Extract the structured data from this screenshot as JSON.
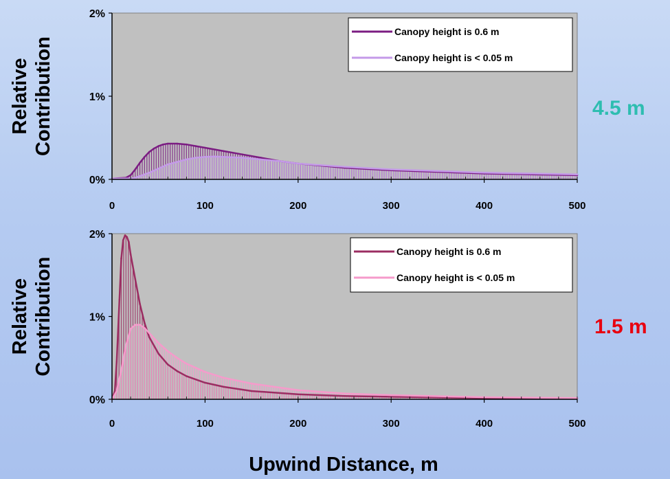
{
  "chart_data": [
    {
      "type": "line",
      "panel_label": "4.5 m",
      "ylabel": [
        "Relative",
        "Contribution"
      ],
      "xlabel": "",
      "xlim": [
        0,
        500
      ],
      "ylim": [
        0,
        2
      ],
      "x_ticks": [
        0,
        100,
        200,
        300,
        400,
        500
      ],
      "y_ticks": [
        0,
        1,
        2
      ],
      "y_tick_labels": [
        "0%",
        "1%",
        "2%"
      ],
      "legend_position": "top-right",
      "series": [
        {
          "name": "Canopy height is 0.6 m",
          "color": "#7b1c82",
          "x": [
            0,
            15,
            20,
            25,
            30,
            35,
            40,
            45,
            50,
            55,
            60,
            70,
            80,
            90,
            100,
            120,
            140,
            160,
            180,
            200,
            250,
            300,
            350,
            400,
            450,
            500
          ],
          "y": [
            0.01,
            0.02,
            0.05,
            0.12,
            0.2,
            0.27,
            0.33,
            0.37,
            0.4,
            0.42,
            0.43,
            0.43,
            0.42,
            0.4,
            0.38,
            0.34,
            0.3,
            0.26,
            0.22,
            0.19,
            0.14,
            0.11,
            0.09,
            0.07,
            0.06,
            0.05
          ]
        },
        {
          "name": "Canopy height is < 0.05 m",
          "color": "#c49ae8",
          "x": [
            0,
            20,
            25,
            30,
            40,
            50,
            60,
            70,
            80,
            90,
            100,
            110,
            120,
            140,
            160,
            180,
            200,
            250,
            300,
            350,
            400,
            450,
            500
          ],
          "y": [
            0.01,
            0.01,
            0.02,
            0.04,
            0.08,
            0.13,
            0.18,
            0.21,
            0.24,
            0.26,
            0.27,
            0.275,
            0.27,
            0.26,
            0.24,
            0.22,
            0.19,
            0.15,
            0.12,
            0.1,
            0.08,
            0.07,
            0.06
          ]
        }
      ]
    },
    {
      "type": "line",
      "panel_label": "1.5 m",
      "ylabel": [
        "Relative",
        "Contribution"
      ],
      "xlabel": "Upwind Distance, m",
      "xlim": [
        0,
        500
      ],
      "ylim": [
        0,
        2
      ],
      "x_ticks": [
        0,
        100,
        200,
        300,
        400,
        500
      ],
      "y_ticks": [
        0,
        1,
        2
      ],
      "y_tick_labels": [
        "0%",
        "1%",
        "2%"
      ],
      "legend_position": "top-right",
      "series": [
        {
          "name": "Canopy height is 0.6 m",
          "color": "#9b2d62",
          "x": [
            0,
            3,
            5,
            8,
            10,
            12,
            14,
            16,
            18,
            20,
            25,
            30,
            35,
            40,
            50,
            60,
            70,
            80,
            100,
            120,
            150,
            200,
            250,
            300,
            400,
            500
          ],
          "y": [
            0.0,
            0.1,
            0.45,
            1.2,
            1.7,
            1.92,
            1.98,
            1.96,
            1.9,
            1.75,
            1.45,
            1.15,
            0.92,
            0.75,
            0.55,
            0.42,
            0.34,
            0.28,
            0.2,
            0.15,
            0.1,
            0.06,
            0.04,
            0.03,
            0.015,
            0.01
          ]
        },
        {
          "name": "Canopy height is < 0.05 m",
          "color": "#f59bcb",
          "x": [
            0,
            5,
            10,
            15,
            20,
            25,
            30,
            35,
            40,
            50,
            60,
            70,
            80,
            100,
            120,
            150,
            200,
            250,
            300,
            400,
            500
          ],
          "y": [
            0.0,
            0.1,
            0.35,
            0.65,
            0.85,
            0.9,
            0.9,
            0.86,
            0.8,
            0.68,
            0.58,
            0.5,
            0.43,
            0.33,
            0.26,
            0.19,
            0.11,
            0.07,
            0.05,
            0.025,
            0.015
          ]
        }
      ]
    }
  ],
  "colors": {
    "plot_bg": "#c0c0c0",
    "label_top": "#2ebdb0",
    "label_bottom": "#e8000f"
  }
}
